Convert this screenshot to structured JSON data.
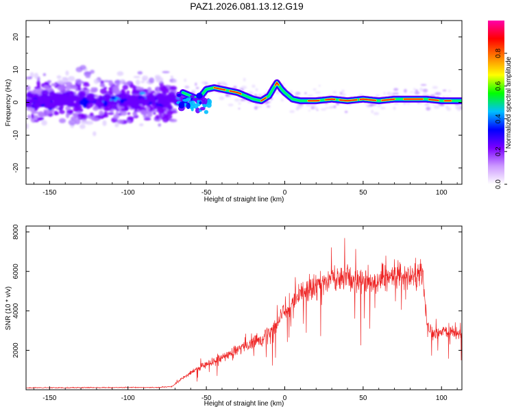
{
  "title": "PAZ1.2026.081.13.12.G19",
  "chart_data": [
    {
      "type": "heatmap",
      "xlabel": "Height of straight line (km)",
      "ylabel": "Frequency (Hz)",
      "xlim": [
        -165,
        113
      ],
      "ylim": [
        -25,
        25
      ],
      "xticks": [
        -150,
        -100,
        -50,
        0,
        50,
        100
      ],
      "yticks": [
        -20,
        -10,
        0,
        10,
        20
      ],
      "colorbar": {
        "label": "Normalized spectral amplitude",
        "range": [
          0,
          1
        ],
        "ticks": [
          "0.0",
          "0.2",
          "0.4",
          "0.6",
          "0.8"
        ],
        "colors": [
          "#ffffff",
          "#cc99ff",
          "#7b00ff",
          "#0000ff",
          "#00bfff",
          "#00ff00",
          "#ffff00",
          "#ff7f00",
          "#ff0000",
          "#ff00aa"
        ]
      },
      "ridge": {
        "x": [
          -65,
          -60,
          -55,
          -50,
          -45,
          -40,
          -35,
          -30,
          -25,
          -20,
          -15,
          -10,
          -7,
          -5,
          -2,
          0,
          5,
          10,
          20,
          30,
          40,
          50,
          60,
          70,
          80,
          90,
          100,
          113
        ],
        "freq": [
          3,
          2,
          1,
          4,
          4.5,
          4,
          3.5,
          3,
          2,
          1,
          0.5,
          2,
          4.5,
          6,
          4,
          3,
          1,
          0.5,
          0.5,
          1,
          0.5,
          1,
          0.5,
          1,
          1,
          1,
          0.5,
          0.5
        ]
      }
    },
    {
      "type": "line",
      "xlabel": "Height of straight line (km)",
      "ylabel": "SNR (10 * v/v)",
      "xlim": [
        -165,
        113
      ],
      "ylim": [
        0,
        8300
      ],
      "xticks": [
        -150,
        -100,
        -50,
        0,
        50,
        100
      ],
      "yticks": [
        2000,
        4000,
        6000,
        8000
      ],
      "color": "#ee2222",
      "envelope": {
        "x": [
          -165,
          -80,
          -72,
          -65,
          -55,
          -45,
          -35,
          -25,
          -15,
          -5,
          0,
          10,
          20,
          30,
          40,
          50,
          60,
          70,
          80,
          88,
          91,
          95,
          100,
          105,
          113
        ],
        "snr": [
          100,
          120,
          160,
          600,
          1100,
          1500,
          1800,
          2200,
          2600,
          3300,
          4000,
          4800,
          5200,
          5600,
          5700,
          5500,
          5600,
          5800,
          5900,
          5900,
          3200,
          2700,
          3000,
          2900,
          2800
        ]
      }
    }
  ]
}
